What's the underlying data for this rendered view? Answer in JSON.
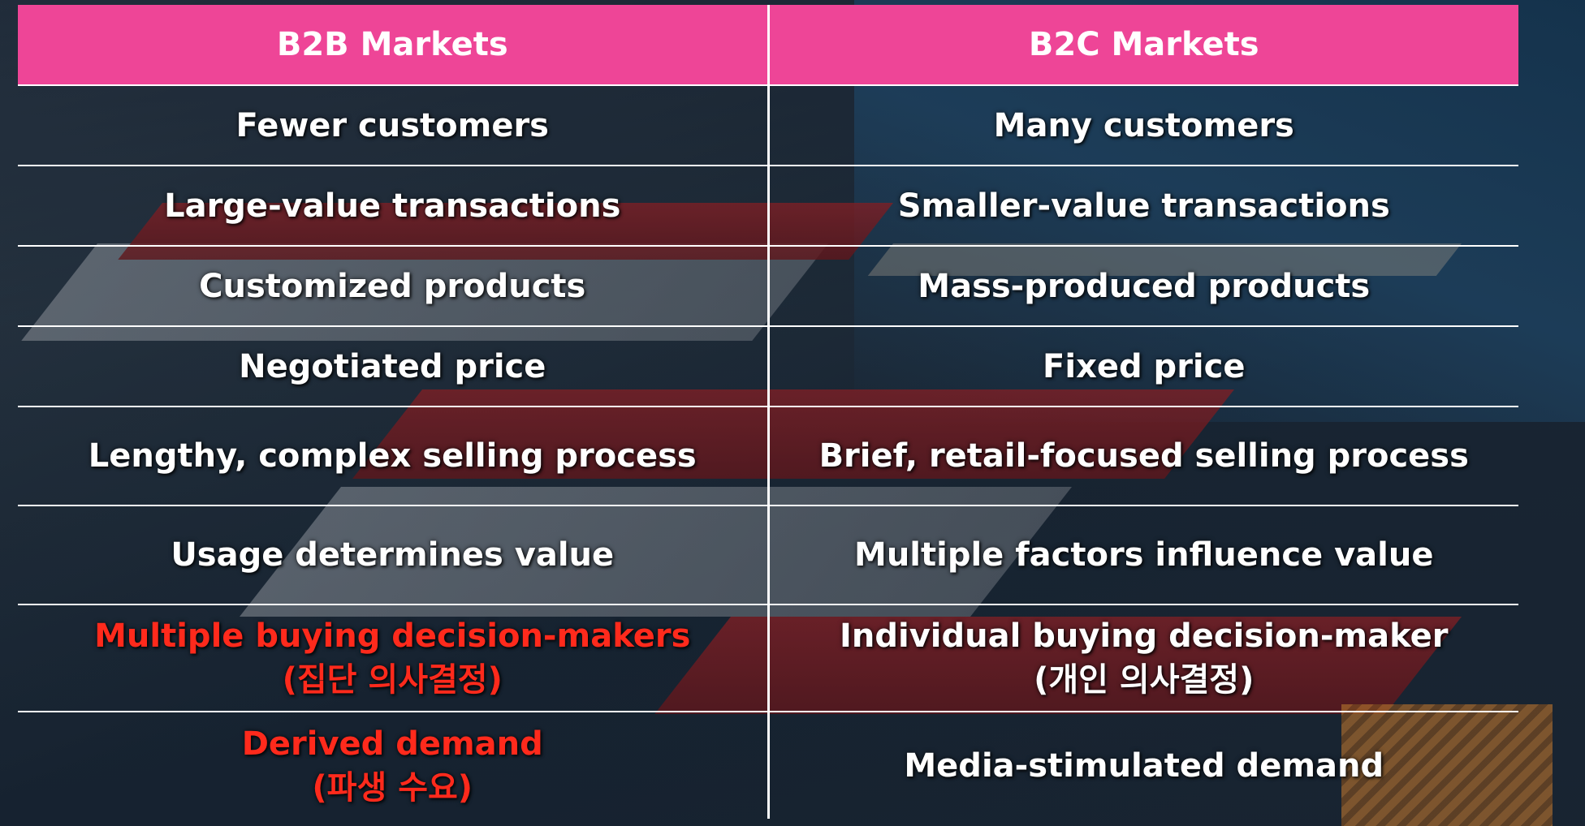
{
  "table": {
    "headers": [
      "B2B Markets",
      "B2C Markets"
    ],
    "rows": [
      {
        "b2b": [
          "Fewer customers"
        ],
        "b2c": [
          "Many customers"
        ]
      },
      {
        "b2b": [
          "Large-value transactions"
        ],
        "b2c": [
          "Smaller-value transactions"
        ]
      },
      {
        "b2b": [
          "Customized products"
        ],
        "b2c": [
          "Mass-produced products"
        ]
      },
      {
        "b2b": [
          "Negotiated price"
        ],
        "b2c": [
          "Fixed price"
        ]
      },
      {
        "b2b": [
          "Lengthy, complex selling process"
        ],
        "b2c": [
          "Brief, retail-focused selling process"
        ]
      },
      {
        "b2b": [
          "Usage determines value"
        ],
        "b2c": [
          "Multiple factors influence value"
        ]
      },
      {
        "b2b": [
          "Multiple buying decision-makers",
          "(집단 의사결정)"
        ],
        "b2c": [
          "Individual buying decision-maker",
          "(개인 의사결정)"
        ]
      },
      {
        "b2b": [
          "Derived demand",
          "(파생 수요)"
        ],
        "b2c": [
          "Media-stimulated demand"
        ]
      }
    ]
  },
  "colors": {
    "header_bg": "#ee4597",
    "highlight_text": "#ff2a1c",
    "text": "#ffffff"
  }
}
